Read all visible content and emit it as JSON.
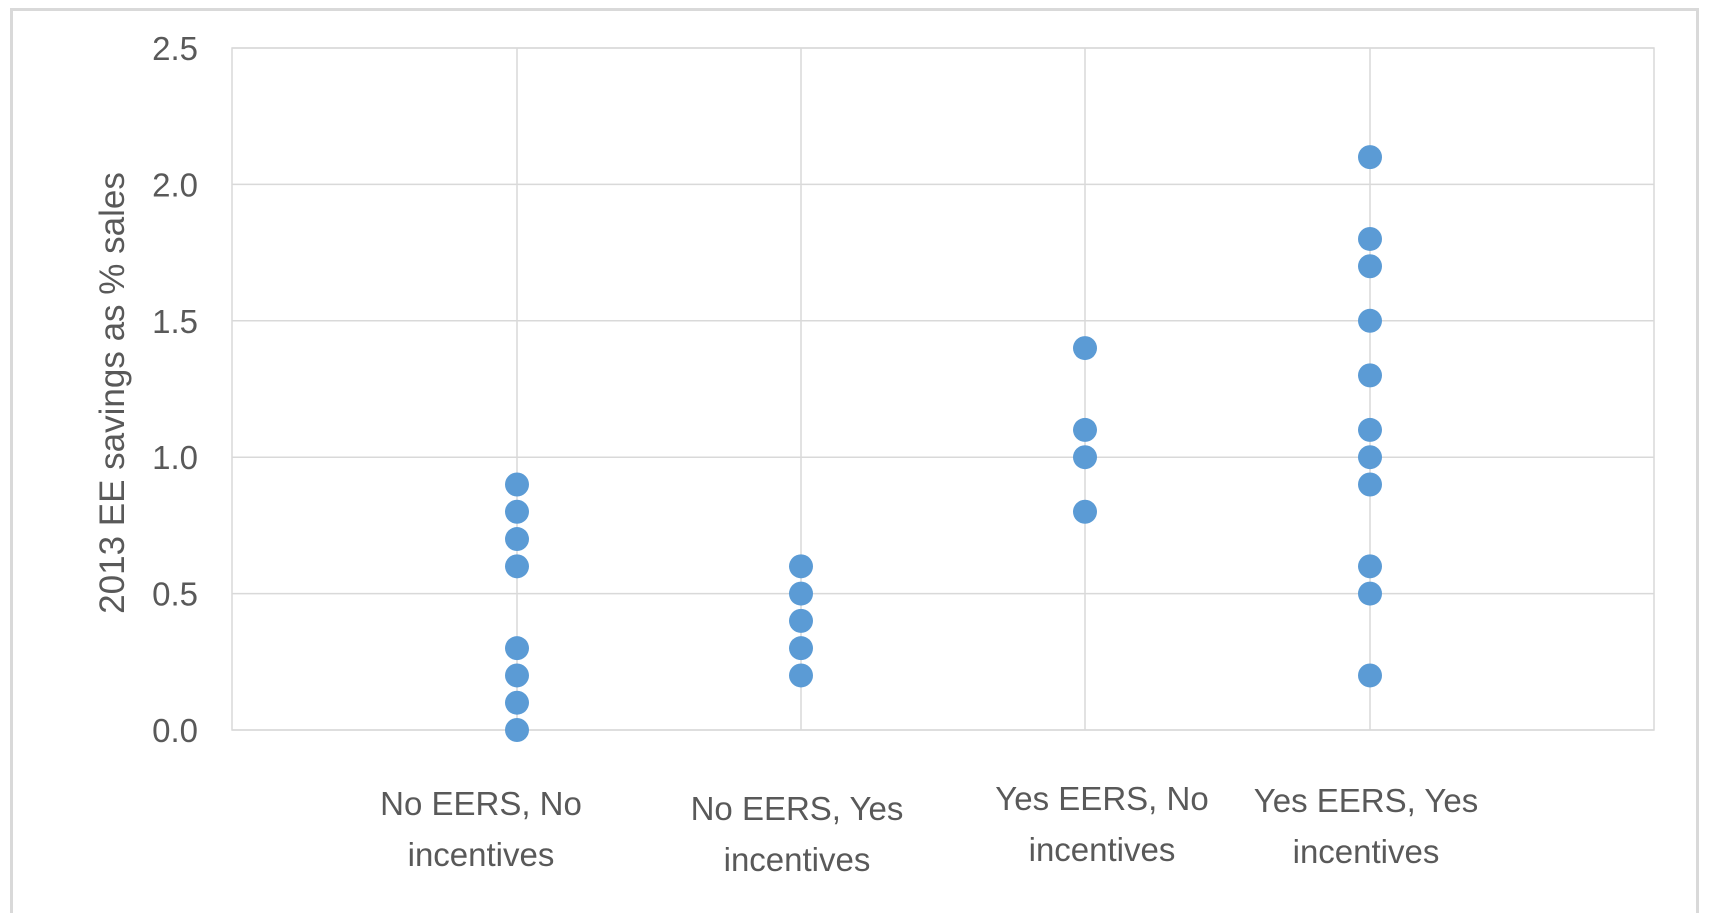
{
  "chart_data": {
    "type": "scatter",
    "title": "",
    "xlabel": "",
    "ylabel": "2013 EE savings as % sales",
    "categories": [
      [
        "No EERS, No",
        "incentives"
      ],
      [
        "No EERS, Yes",
        "incentives"
      ],
      [
        "Yes EERS, No",
        "incentives"
      ],
      [
        "Yes EERS, Yes",
        "incentives"
      ]
    ],
    "ylim": [
      0,
      2.5
    ],
    "yticks": [
      "0.0",
      "0.5",
      "1.0",
      "1.5",
      "2.0",
      "2.5"
    ],
    "grid": true,
    "legend": "none",
    "series": [
      {
        "color": "#5b9bd5",
        "points": [
          {
            "x": "No EERS, No incentives",
            "y": 0.9
          },
          {
            "x": "No EERS, No incentives",
            "y": 0.8
          },
          {
            "x": "No EERS, No incentives",
            "y": 0.7
          },
          {
            "x": "No EERS, No incentives",
            "y": 0.6
          },
          {
            "x": "No EERS, No incentives",
            "y": 0.3
          },
          {
            "x": "No EERS, No incentives",
            "y": 0.2
          },
          {
            "x": "No EERS, No incentives",
            "y": 0.1
          },
          {
            "x": "No EERS, No incentives",
            "y": 0.0
          },
          {
            "x": "No EERS, Yes incentives",
            "y": 0.6
          },
          {
            "x": "No EERS, Yes incentives",
            "y": 0.5
          },
          {
            "x": "No EERS, Yes incentives",
            "y": 0.4
          },
          {
            "x": "No EERS, Yes incentives",
            "y": 0.3
          },
          {
            "x": "No EERS, Yes incentives",
            "y": 0.2
          },
          {
            "x": "Yes EERS, No incentives",
            "y": 1.4
          },
          {
            "x": "Yes EERS, No incentives",
            "y": 1.1
          },
          {
            "x": "Yes EERS, No incentives",
            "y": 1.0
          },
          {
            "x": "Yes EERS, No incentives",
            "y": 0.8
          },
          {
            "x": "Yes EERS, Yes incentives",
            "y": 2.1
          },
          {
            "x": "Yes EERS, Yes incentives",
            "y": 1.8
          },
          {
            "x": "Yes EERS, Yes incentives",
            "y": 1.7
          },
          {
            "x": "Yes EERS, Yes incentives",
            "y": 1.5
          },
          {
            "x": "Yes EERS, Yes incentives",
            "y": 1.3
          },
          {
            "x": "Yes EERS, Yes incentives",
            "y": 1.1
          },
          {
            "x": "Yes EERS, Yes incentives",
            "y": 1.0
          },
          {
            "x": "Yes EERS, Yes incentives",
            "y": 0.9
          },
          {
            "x": "Yes EERS, Yes incentives",
            "y": 0.6
          },
          {
            "x": "Yes EERS, Yes incentives",
            "y": 0.5
          },
          {
            "x": "Yes EERS, Yes incentives",
            "y": 0.2
          }
        ]
      }
    ]
  }
}
